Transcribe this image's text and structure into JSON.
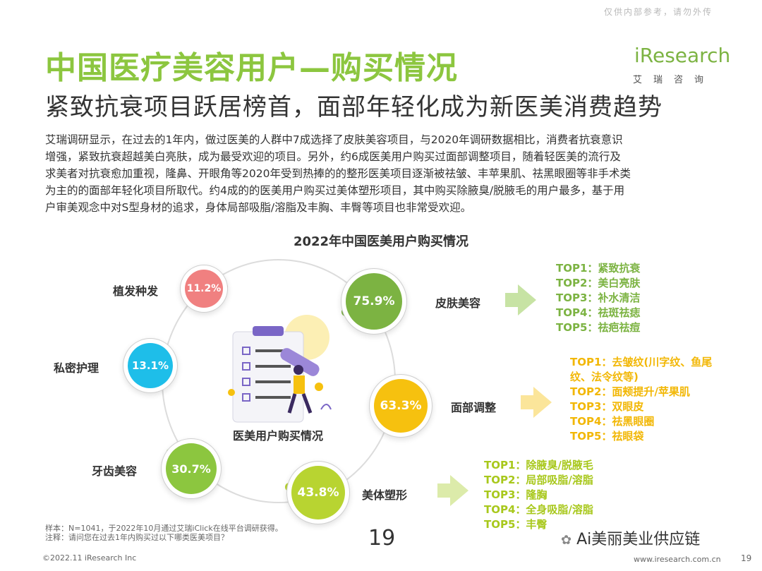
{
  "watermark": "仅供内部参考，请勿外传",
  "logo": {
    "text": "iResearch",
    "sub": "艾瑞咨询"
  },
  "title": "中国医疗美容用户—购买情况",
  "subtitle": "紧致抗衰项目跃居榜首，面部年轻化成为新医美消费趋势",
  "body_lines": [
    "艾瑞调研显示，在过去的1年内，做过医美的人群中7成选择了皮肤美容项目，与2020年调研数据相比，消费者抗衰意识",
    "增强，紧致抗衰超越美白亮肤，成为最受欢迎的项目。另外，约6成医美用户购买过面部调整项目，随着轻医美的流行及",
    "求美者对抗衰愈加重视，隆鼻、开眼角等2020年受到热捧的的整形医美项目逐渐被祛皱、丰苹果肌、祛黑眼圈等非手术类",
    "为主的的面部年轻化项目所取代。约4成的的医美用户购买过美体塑形项目，其中购买除腋臭/脱腋毛的用户最多，基于用",
    "户审美观念中对S型身材的追求，身体局部吸脂/溶脂及丰胸、丰臀等项目也非常受欢迎。"
  ],
  "chart_title": "2022年中国医美用户购买情况",
  "center_label": "医美用户购买情况",
  "chart_data": {
    "type": "bubble",
    "title": "2022年中国医美用户购买情况",
    "unit": "%",
    "categories": [
      {
        "name": "皮肤美容",
        "value": 75.9,
        "value_label": "75.9%",
        "color": "#7cb342",
        "top": [
          "TOP1：紧致抗衰",
          "TOP2：美白亮肤",
          "TOP3：补水清洁",
          "TOP4：祛斑祛痣",
          "TOP5：祛疤祛痘"
        ],
        "top_color": "#7cb342"
      },
      {
        "name": "面部调整",
        "value": 63.3,
        "value_label": "63.3%",
        "color": "#f6c10f",
        "top": [
          "TOP1：去皱纹(川字纹、鱼尾",
          "纹、法令纹等)",
          "TOP2：面颊提升/苹果肌",
          "TOP3：双眼皮",
          "TOP4：祛黑眼圈",
          "TOP5：祛眼袋"
        ],
        "top_color": "#f2b705"
      },
      {
        "name": "美体塑形",
        "value": 43.8,
        "value_label": "43.8%",
        "color": "#b8d431",
        "top": [
          "TOP1：除腋臭/脱腋毛",
          "TOP2：局部吸脂/溶脂",
          "TOP3：隆胸",
          "TOP4：全身吸脂/溶脂",
          "TOP5：丰臀"
        ],
        "top_color": "#a8c81c"
      },
      {
        "name": "牙齿美容",
        "value": 30.7,
        "value_label": "30.7%",
        "color": "#8cc63f"
      },
      {
        "name": "私密护理",
        "value": 13.1,
        "value_label": "13.1%",
        "color": "#1ebee9"
      },
      {
        "name": "植发种发",
        "value": 11.2,
        "value_label": "11.2%",
        "color": "#f08080"
      }
    ]
  },
  "footnote": [
    "样本：N=1041，于2022年10月通过艾瑞iClick在线平台调研获得。",
    "注释：请问您在过去1年内购买过以下哪类医美项目？"
  ],
  "page_center": "19",
  "wechat": "Ai美丽美业供应链",
  "copyright": "©2022.11 iResearch Inc",
  "site": "www.iresearch.com.cn",
  "page_num": "19"
}
